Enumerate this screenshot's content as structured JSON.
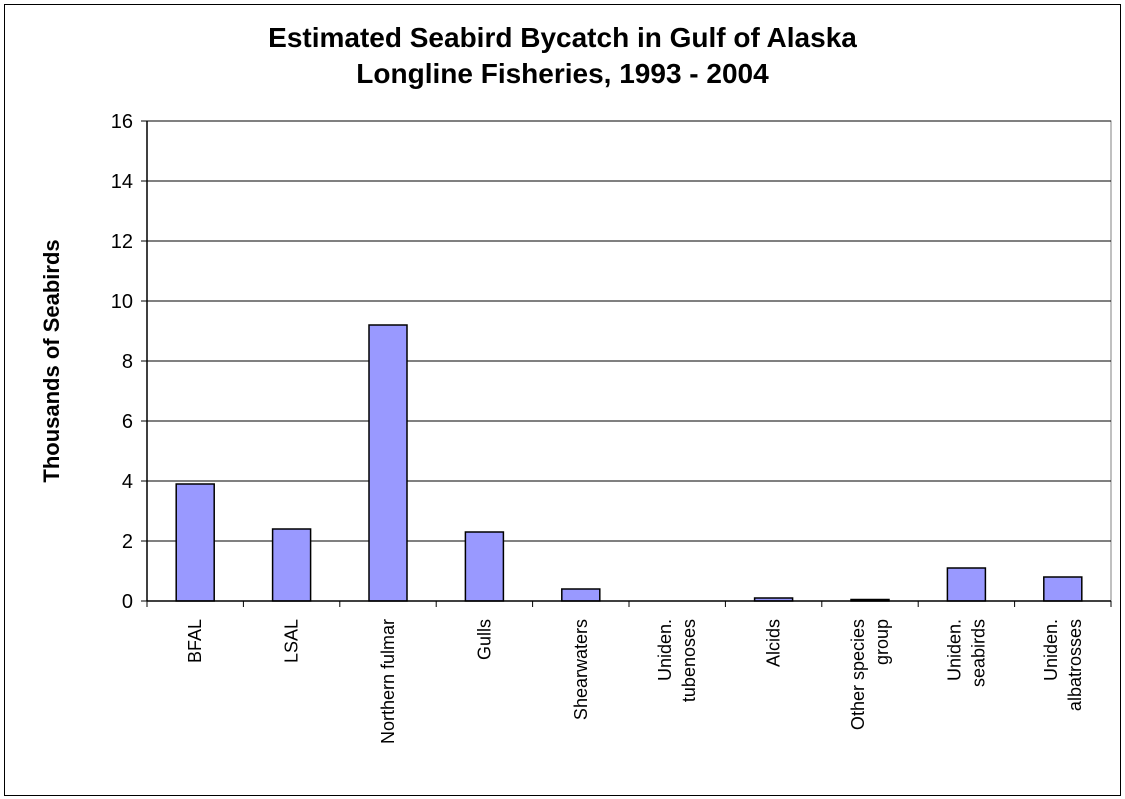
{
  "chart_data": {
    "type": "bar",
    "title": "Estimated Seabird Bycatch in Gulf of Alaska",
    "subtitle": "Longline Fisheries, 1993 - 2004",
    "xlabel": "",
    "ylabel": "Thousands of Seabirds",
    "ylim": [
      0,
      16
    ],
    "yticks": [
      0,
      2,
      4,
      6,
      8,
      10,
      12,
      14,
      16
    ],
    "grid": true,
    "legend": "none",
    "bar_color": "#9999ff",
    "categories": [
      [
        "BFAL"
      ],
      [
        "LSAL"
      ],
      [
        "Northern fulmar"
      ],
      [
        "Gulls"
      ],
      [
        "Shearwaters"
      ],
      [
        "Uniden.",
        "tubenoses"
      ],
      [
        "Alcids"
      ],
      [
        "Other species",
        "group"
      ],
      [
        "Uniden.",
        "seabirds"
      ],
      [
        "Uniden.",
        "albatrosses"
      ]
    ],
    "values": [
      3.9,
      2.4,
      9.2,
      2.3,
      0.4,
      0.0,
      0.1,
      0.05,
      1.1,
      0.8
    ]
  }
}
